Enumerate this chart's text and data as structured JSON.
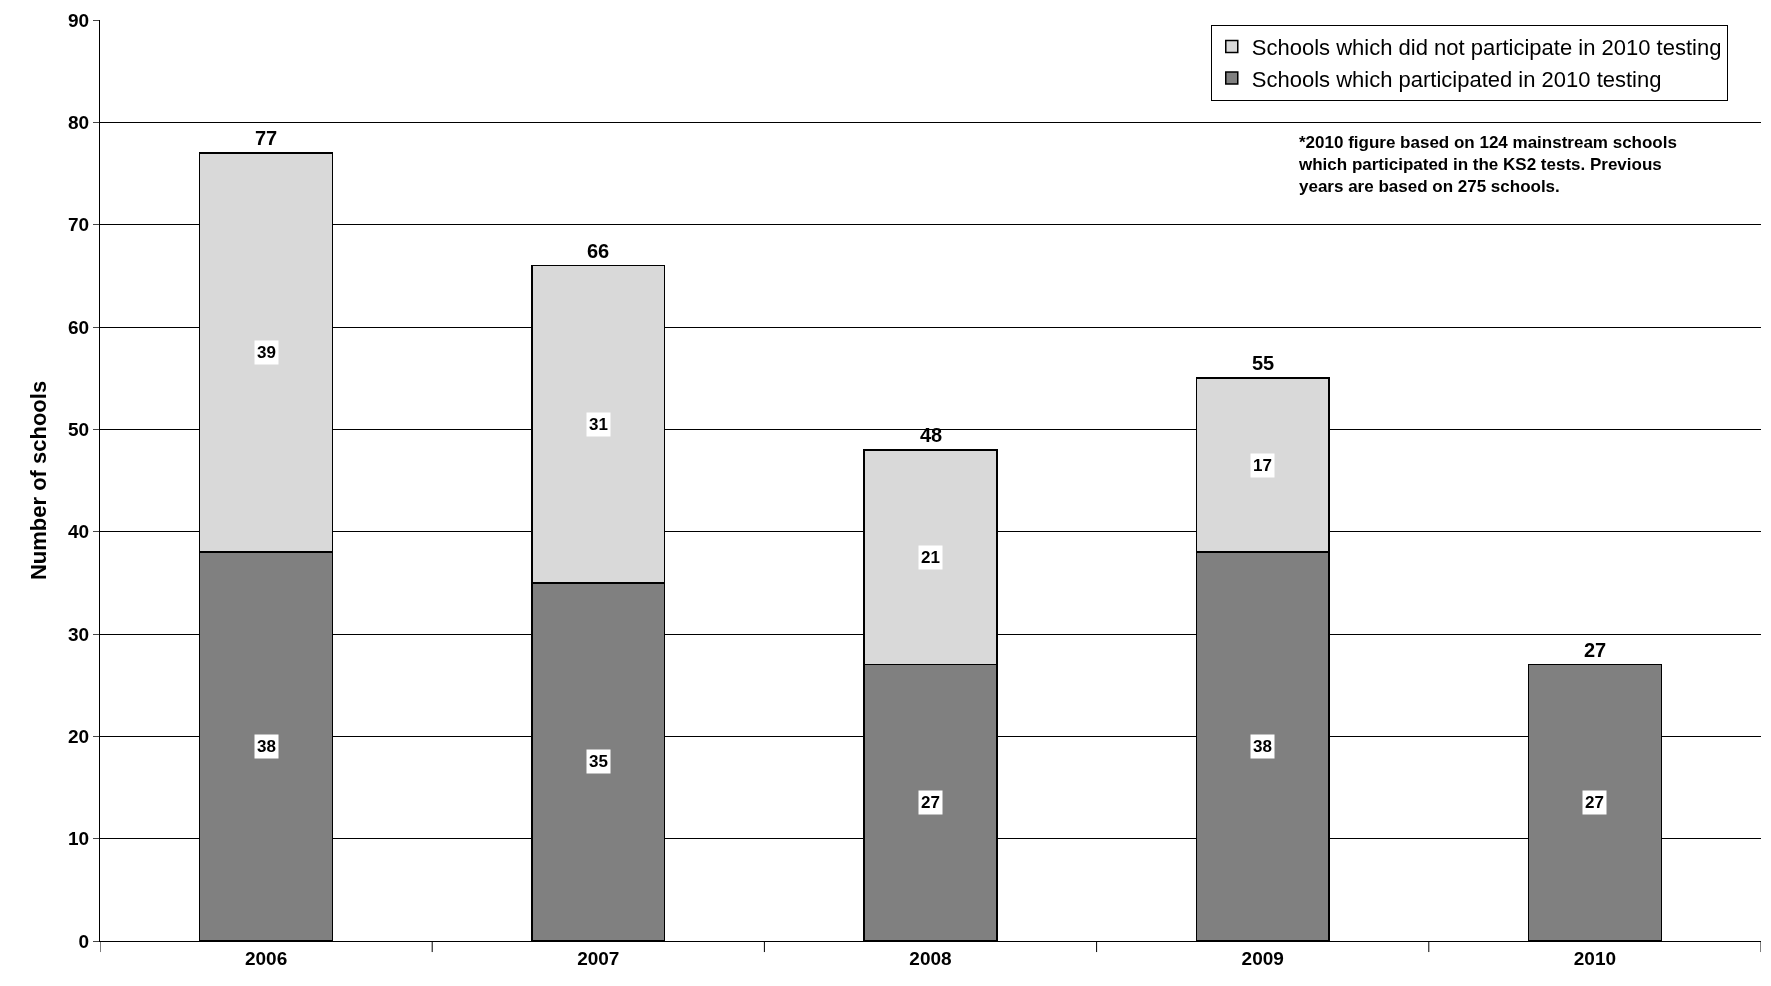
{
  "chart_data": {
    "type": "bar",
    "stacked": true,
    "ylabel": "Number of schools",
    "categories": [
      "2006",
      "2007",
      "2008",
      "2009",
      "2010"
    ],
    "series": [
      {
        "name": "Schools which participated in 2010 testing",
        "color": "#808080",
        "values": [
          38,
          35,
          27,
          38,
          27
        ]
      },
      {
        "name": "Schools which did not participate in 2010 testing",
        "color": "#d9d9d9",
        "values": [
          39,
          31,
          21,
          17,
          null
        ]
      }
    ],
    "totals": [
      "77",
      "66",
      "48",
      "55",
      "27"
    ],
    "data_labels": true,
    "ylim": [
      0,
      90
    ],
    "yticks": [
      0,
      10,
      20,
      30,
      40,
      50,
      60,
      70,
      80,
      90
    ],
    "grid": "y",
    "legend": "top right",
    "annotations": [
      "*2010 figure based on 124 mainstream schools\nwhich participated in the KS2 tests. Previous\nyears are based on 275 schools."
    ]
  }
}
